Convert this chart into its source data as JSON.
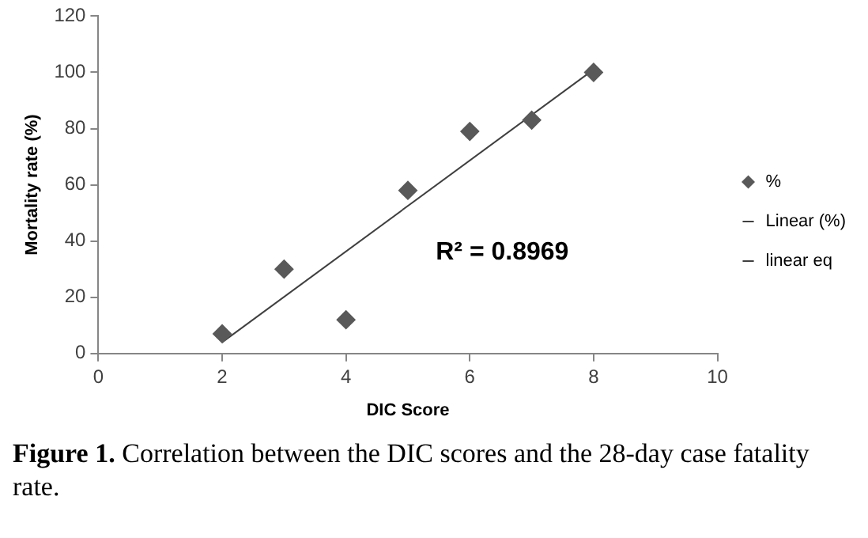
{
  "chart_data": {
    "type": "scatter",
    "xlabel": "DIC Score",
    "ylabel": "Mortality rate (%)",
    "series": [
      {
        "name": "%",
        "color": "#595959",
        "marker": "diamond",
        "x": [
          2,
          3,
          4,
          5,
          6,
          7,
          8
        ],
        "values": [
          7,
          30,
          12,
          58,
          79,
          83,
          100
        ]
      },
      {
        "name": "Linear (%)",
        "type": "line",
        "color": "#404040",
        "marker": "none",
        "x": [
          2,
          8
        ],
        "values": [
          4,
          101
        ]
      },
      {
        "name": "linear eq",
        "type": "line",
        "color": "#404040",
        "marker": "none"
      }
    ],
    "xlim": [
      0,
      10
    ],
    "xticks": [
      0,
      2,
      4,
      6,
      8,
      10
    ],
    "ylim": [
      0,
      120
    ],
    "yticks": [
      0,
      20,
      40,
      60,
      80,
      100,
      120
    ],
    "grid": false,
    "legend": "right",
    "annotations": [
      "R² = 0.8969",
      "Figure 1. Correlation between the DIC scores and the 28-day case fatality rate."
    ]
  }
}
